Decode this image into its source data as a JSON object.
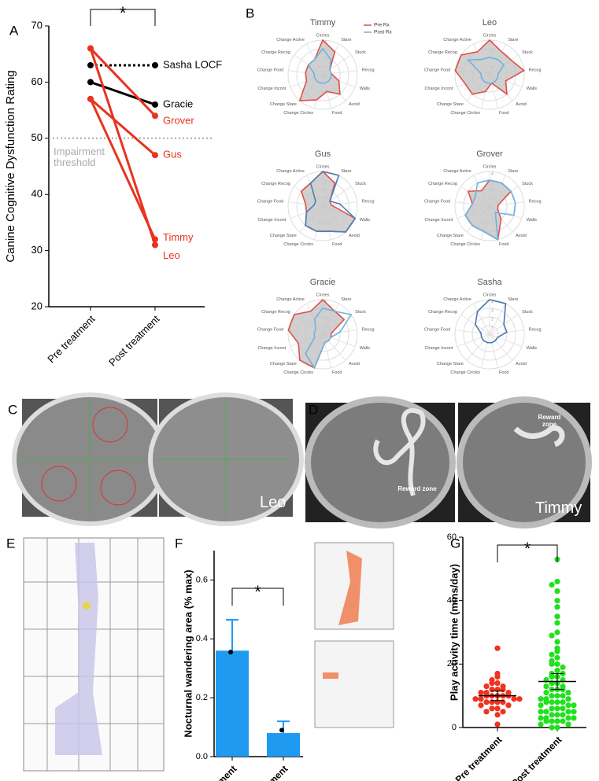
{
  "chart_data": [
    {
      "type": "line",
      "panel": "A",
      "ylabel": "Canine Cognitive Dysfunction Rating",
      "categories": [
        "Pre treatment",
        "Post treatment"
      ],
      "ylim": [
        20,
        70
      ],
      "yticks": [
        20,
        30,
        40,
        50,
        60,
        70
      ],
      "threshold": {
        "value": 50,
        "label": "Impairment threshold",
        "color": "#aaaaaa"
      },
      "significance": "*",
      "series": [
        {
          "name": "Sasha LOCF",
          "color": "#000000",
          "dashed": true,
          "values": [
            63,
            63
          ]
        },
        {
          "name": "Gracie",
          "color": "#000000",
          "values": [
            60,
            56
          ]
        },
        {
          "name": "Grover",
          "color": "#e8331e",
          "values": [
            66,
            54
          ]
        },
        {
          "name": "Gus",
          "color": "#e8331e",
          "values": [
            57,
            47
          ]
        },
        {
          "name": "Timmy",
          "color": "#e8331e",
          "values": [
            57,
            32
          ]
        },
        {
          "name": "Leo",
          "color": "#e8331e",
          "values": [
            66,
            31
          ]
        }
      ]
    },
    {
      "type": "radar",
      "panel": "B",
      "axes": [
        "Circles",
        "Stare",
        "Stuck",
        "Recog",
        "Walls",
        "Avoid",
        "Food",
        "Change Circles",
        "Change Stare",
        "Change Incont",
        "Change Food",
        "Change Recog",
        "Change Active"
      ],
      "rlim": [
        0,
        4
      ],
      "rticks": [
        0,
        1,
        2,
        3,
        4
      ],
      "charts": [
        {
          "title": "Timmy",
          "legend": true,
          "series": [
            {
              "name": "Pre Rx",
              "color": "#e0504a",
              "fill": "#c4c4c4",
              "values": [
                4,
                3,
                1,
                1,
                2,
                3,
                2,
                3,
                4,
                2,
                2,
                2,
                2
              ]
            },
            {
              "name": "Post Rx",
              "color": "#6fb3e0",
              "values": [
                3,
                2,
                1,
                1,
                1,
                1,
                1,
                1,
                1,
                1,
                1,
                2,
                2
              ]
            }
          ]
        },
        {
          "title": "Leo",
          "series": [
            {
              "name": "Pre Rx",
              "color": "#e0504a",
              "fill": "#c4c4c4",
              "values": [
                4,
                3,
                3,
                4,
                2,
                3,
                1,
                2,
                3,
                3,
                4,
                4,
                3
              ]
            },
            {
              "name": "Post Rx",
              "color": "#6fb3e0",
              "values": [
                2,
                2,
                2,
                1,
                1,
                1,
                1,
                1,
                1,
                1,
                1,
                3,
                2
              ]
            }
          ]
        },
        {
          "title": "Gus",
          "series": [
            {
              "name": "Pre Rx",
              "color": "#e0504a",
              "fill": "#c4c4c4",
              "values": [
                4,
                3,
                1,
                1,
                4,
                4,
                3,
                3,
                3,
                2,
                2,
                3,
                3
              ]
            },
            {
              "name": "Post Rx",
              "color": "#4a7fb5",
              "values": [
                4,
                4,
                1,
                2,
                4,
                4,
                3,
                3,
                3,
                2,
                1,
                1,
                3
              ]
            }
          ]
        },
        {
          "title": "Grover",
          "series": [
            {
              "name": "Pre Rx",
              "color": "#e0504a",
              "fill": "#c4c4c4",
              "values": [
                3,
                3,
                3,
                1,
                1,
                2,
                4,
                3,
                3,
                3,
                2,
                3,
                2
              ]
            },
            {
              "name": "Post Rx",
              "color": "#6fb3e0",
              "values": [
                3,
                3,
                3,
                3,
                3,
                1,
                4,
                3,
                3,
                3,
                2,
                2,
                3
              ]
            }
          ]
        },
        {
          "title": "Gracie",
          "series": [
            {
              "name": "Pre Rx",
              "color": "#e0504a",
              "fill": "#c4c4c4",
              "values": [
                4,
                3,
                3,
                1,
                1,
                1,
                1,
                4,
                4,
                3,
                4,
                4,
                3
              ]
            },
            {
              "name": "Post Rx",
              "color": "#6fb3e0",
              "values": [
                3,
                3,
                4,
                2,
                1,
                1,
                1,
                4,
                3,
                1,
                1,
                1,
                2
              ]
            }
          ]
        },
        {
          "title": "Sasha",
          "series": [
            {
              "name": "Post Rx",
              "color": "#4a78b0",
              "values": [
                4,
                4,
                2,
                2,
                1,
                1,
                1,
                1,
                1,
                1,
                1,
                2,
                3
              ]
            }
          ]
        }
      ]
    },
    {
      "type": "bar",
      "panel": "F",
      "ylabel": "Nocturnal wandering area (% max)",
      "categories": [
        "Pre treatment",
        "Post treatment"
      ],
      "color": "#1e9bf0",
      "values": [
        0.36,
        0.08
      ],
      "errors": [
        0.105,
        0.04
      ],
      "points": [
        0.355,
        0.09
      ],
      "ylim": [
        0,
        0.7
      ],
      "yticks": [
        {
          "value": 0,
          "label": "0.0"
        },
        0.2,
        0.4,
        0.6
      ],
      "significance": "*"
    },
    {
      "type": "strip",
      "panel": "G",
      "ylabel": "Play activity time (mins/day)",
      "categories": [
        "Pre treatment",
        "Post treatment"
      ],
      "ylim": [
        0,
        60
      ],
      "yticks": [
        0,
        20,
        40,
        60
      ],
      "significance": "*",
      "groups": [
        {
          "color": "#f0321e",
          "mean": 10,
          "error": 1.5,
          "values": [
            25,
            17,
            16,
            15,
            14,
            14,
            13,
            13,
            12,
            12,
            12,
            11,
            11,
            11,
            10,
            10,
            10,
            10,
            10,
            9,
            9,
            9,
            9,
            8,
            8,
            8,
            8,
            7,
            7,
            6,
            6,
            5,
            5,
            4,
            1
          ]
        },
        {
          "color": "#22e01e",
          "mean": 14.5,
          "error": 2.5,
          "values": [
            53,
            46,
            45,
            43,
            40,
            38,
            35,
            33,
            30,
            29,
            27,
            25,
            24,
            23,
            22,
            21,
            20,
            20,
            19,
            18,
            17,
            17,
            16,
            16,
            15,
            15,
            14,
            14,
            13,
            13,
            12,
            12,
            12,
            11,
            11,
            10,
            10,
            10,
            9,
            9,
            9,
            8,
            8,
            8,
            8,
            7,
            7,
            7,
            6,
            6,
            6,
            5,
            5,
            5,
            5,
            4,
            4,
            4,
            3,
            3,
            3,
            3,
            2,
            2,
            2,
            2,
            1,
            1,
            0,
            0
          ]
        }
      ]
    }
  ],
  "images": [
    {
      "panel": "C",
      "labels": [
        "Leo"
      ]
    },
    {
      "panel": "D",
      "labels": [
        "Reward zone",
        "Reward zone",
        "Timmy"
      ]
    },
    {
      "panel": "E"
    }
  ]
}
